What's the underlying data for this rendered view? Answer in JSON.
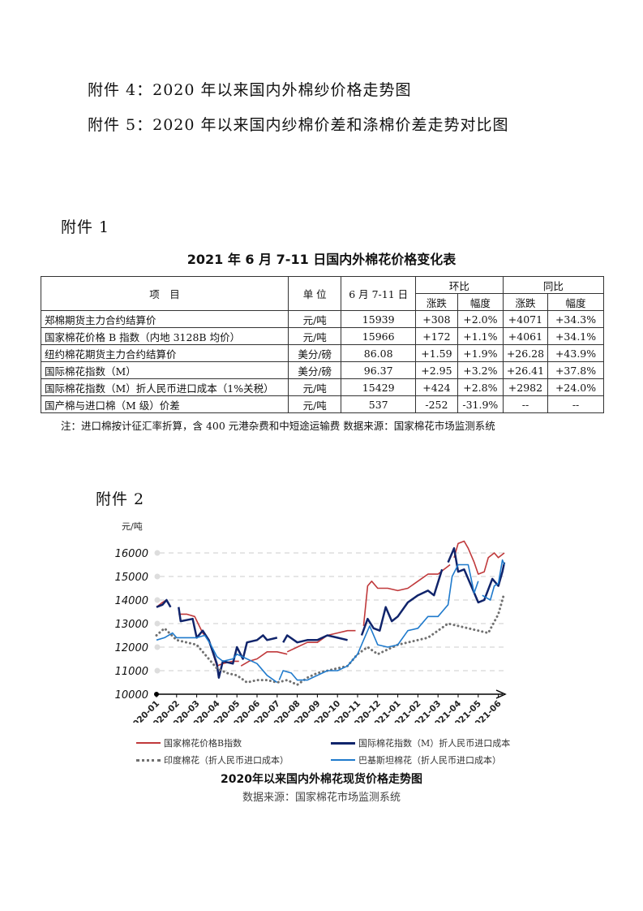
{
  "attachments_top": [
    "附件 4：2020 年以来国内外棉纱价格走势图",
    "附件 5：2020 年以来国内纱棉价差和涤棉价差走势对比图"
  ],
  "attachment1_label": "附件 1",
  "table": {
    "title": "2021 年 6 月 7-11 日国内外棉花价格变化表",
    "headers": {
      "item": "项　目",
      "unit": "单 位",
      "period": "6 月 7-11 日",
      "mom": "环比",
      "yoy": "同比",
      "change": "涨跌",
      "pct": "幅度"
    },
    "rows": [
      [
        "郑棉期货主力合约结算价",
        "元/吨",
        "15939",
        "+308",
        "+2.0%",
        "+4071",
        "+34.3%"
      ],
      [
        "国家棉花价格 B 指数（内地 3128B 均价）",
        "元/吨",
        "15966",
        "+172",
        "+1.1%",
        "+4061",
        "+34.1%"
      ],
      [
        "纽约棉花期货主力合约结算价",
        "美分/磅",
        "86.08",
        "+1.59",
        "+1.9%",
        "+26.28",
        "+43.9%"
      ],
      [
        "国际棉花指数（M）",
        "美分/磅",
        "96.37",
        "+2.95",
        "+3.2%",
        "+26.41",
        "+37.8%"
      ],
      [
        "国际棉花指数（M）折人民币进口成本（1%关税）",
        "元/吨",
        "15429",
        "+424",
        "+2.8%",
        "+2982",
        "+24.0%"
      ],
      [
        "国产棉与进口棉（M 级）价差",
        "元/吨",
        "537",
        "-252",
        "-31.9%",
        "--",
        "--"
      ]
    ],
    "note": "注：进口棉按计征汇率折算，含 400 元港杂费和中短途运输费  数据来源：国家棉花市场监测系统"
  },
  "attachment2_label": "附件 2",
  "chart_data": {
    "type": "line",
    "title": "2020年以来国内外棉花现货价格走势图",
    "source": "数据来源：国家棉花市场监测系统",
    "ylabel": "元/吨",
    "ylim": [
      10000,
      16500
    ],
    "yticks": [
      "10000",
      "11000",
      "12000",
      "13000",
      "14000",
      "15000",
      "16000"
    ],
    "xticks": [
      "2020-01",
      "2020-02",
      "2020-03",
      "2020-04",
      "2020-05",
      "2020-06",
      "2020-07",
      "2020-08",
      "2020-09",
      "2020-10",
      "2020-11",
      "2020-12",
      "2021-01",
      "2021-02",
      "2021-03",
      "2021-04",
      "2021-05",
      "2021-06"
    ],
    "x_unit": "month index from 2020-01",
    "series": [
      {
        "name": "国家棉花价格B指数",
        "color": "#c0393b",
        "style": "solid",
        "points": [
          [
            0,
            13700
          ],
          [
            0.3,
            13900
          ],
          [
            0.5,
            14000
          ],
          null,
          [
            1.1,
            13400
          ],
          [
            1.5,
            13400
          ],
          [
            1.9,
            13300
          ],
          [
            2.3,
            12600
          ],
          [
            2.6,
            12300
          ],
          [
            3,
            11200
          ],
          [
            3.3,
            11300
          ],
          [
            3.8,
            11400
          ],
          [
            4.1,
            11400
          ],
          null,
          [
            4.2,
            11200
          ],
          [
            4.6,
            11400
          ],
          [
            5,
            11500
          ],
          [
            5.5,
            11800
          ],
          [
            6,
            11800
          ],
          [
            6.5,
            11700
          ],
          null,
          [
            6.5,
            11800
          ],
          [
            7,
            12000
          ],
          [
            7.5,
            12200
          ],
          [
            8,
            12200
          ],
          [
            8.5,
            12500
          ],
          [
            9,
            12600
          ],
          [
            9.5,
            12700
          ],
          [
            9.9,
            12700
          ],
          null,
          [
            10.3,
            12900
          ],
          [
            10.5,
            14600
          ],
          [
            10.7,
            14800
          ],
          [
            11,
            14500
          ],
          [
            11.5,
            14500
          ],
          [
            12,
            14400
          ],
          [
            12.5,
            14500
          ],
          [
            13,
            14800
          ],
          [
            13.5,
            15100
          ],
          [
            14,
            15100
          ],
          [
            14.3,
            15300
          ],
          [
            14.6,
            15500
          ],
          null,
          [
            14.8,
            15800
          ],
          [
            15,
            16400
          ],
          [
            15.3,
            16500
          ],
          [
            15.5,
            16200
          ],
          [
            15.8,
            15600
          ],
          [
            16,
            15100
          ],
          [
            16.3,
            15200
          ],
          [
            16.5,
            15800
          ],
          [
            16.8,
            16000
          ],
          [
            17,
            15800
          ],
          [
            17.3,
            16000
          ]
        ]
      },
      {
        "name": "国际棉花指数（M）折人民币进口成本",
        "color": "#10246b",
        "style": "solid",
        "points": [
          [
            0,
            13700
          ],
          [
            0.3,
            13800
          ],
          [
            0.5,
            14000
          ],
          [
            0.7,
            13700
          ],
          null,
          [
            1.1,
            13700
          ],
          [
            1.2,
            13100
          ],
          [
            1.8,
            13200
          ],
          [
            2,
            12400
          ],
          [
            2.3,
            12700
          ],
          [
            2.6,
            12300
          ],
          [
            3,
            11300
          ],
          [
            3.1,
            10700
          ],
          [
            3.3,
            11400
          ],
          [
            3.8,
            11300
          ],
          [
            4,
            12000
          ],
          [
            4.3,
            11500
          ],
          [
            4.5,
            12200
          ],
          [
            5,
            12300
          ],
          [
            5.3,
            12500
          ],
          [
            5.5,
            12300
          ],
          [
            6,
            12400
          ],
          null,
          [
            6.3,
            12200
          ],
          [
            6.5,
            12500
          ],
          [
            7,
            12200
          ],
          [
            7.5,
            12300
          ],
          [
            8,
            12300
          ],
          [
            8.5,
            12500
          ],
          [
            9,
            12400
          ],
          [
            9.5,
            12300
          ],
          null,
          [
            10.2,
            12500
          ],
          [
            10.5,
            13200
          ],
          [
            10.8,
            12800
          ],
          [
            11.1,
            12700
          ],
          [
            11.4,
            13700
          ],
          [
            11.7,
            13100
          ],
          [
            12,
            13300
          ],
          [
            12.5,
            13900
          ],
          [
            13,
            14200
          ],
          [
            13.5,
            14400
          ],
          [
            13.8,
            14200
          ],
          [
            14.2,
            15300
          ],
          null,
          [
            14.5,
            15600
          ],
          [
            14.8,
            16200
          ],
          [
            15,
            15200
          ],
          [
            15.3,
            15300
          ],
          [
            15.7,
            14500
          ],
          [
            16,
            13900
          ],
          [
            16.3,
            14000
          ],
          [
            16.7,
            14900
          ],
          [
            17,
            14600
          ],
          [
            17.2,
            15200
          ],
          [
            17.3,
            15600
          ]
        ]
      },
      {
        "name": "印度棉花（折人民币进口成本）",
        "color": "#707070",
        "style": "dotted",
        "points": [
          [
            0,
            12500
          ],
          [
            0.4,
            12800
          ],
          [
            1,
            12300
          ],
          [
            1.5,
            12200
          ],
          [
            2,
            12100
          ],
          [
            2.5,
            11600
          ],
          [
            3,
            11100
          ],
          [
            3.5,
            10900
          ],
          [
            4,
            10800
          ],
          [
            4.5,
            10500
          ],
          [
            5,
            10600
          ],
          [
            5.5,
            10600
          ],
          [
            6,
            10500
          ],
          [
            6.5,
            10600
          ],
          [
            7,
            10400
          ],
          [
            7.5,
            10700
          ],
          [
            8,
            10900
          ],
          [
            8.5,
            11000
          ],
          [
            9,
            11100
          ],
          [
            9.5,
            11200
          ],
          [
            10,
            11700
          ],
          [
            10.5,
            12000
          ],
          [
            11,
            11700
          ],
          [
            11.5,
            11900
          ],
          [
            12,
            12100
          ],
          [
            12.5,
            12200
          ],
          [
            13,
            12300
          ],
          [
            13.5,
            12400
          ],
          [
            14,
            12700
          ],
          [
            14.5,
            13000
          ],
          [
            15,
            12900
          ],
          [
            15.5,
            12800
          ],
          [
            16,
            12700
          ],
          [
            16.5,
            12600
          ],
          [
            17,
            13400
          ],
          [
            17.3,
            14300
          ]
        ]
      },
      {
        "name": "巴基斯坦棉花（折人民币进口成本）",
        "color": "#1f7acc",
        "style": "solid",
        "points": [
          [
            0,
            12300
          ],
          [
            0.4,
            12400
          ],
          [
            0.8,
            12600
          ],
          [
            1,
            12400
          ],
          [
            1.5,
            12400
          ],
          [
            2,
            12400
          ],
          [
            2.4,
            12500
          ],
          [
            2.7,
            12100
          ],
          [
            3,
            11600
          ],
          [
            3.3,
            11400
          ],
          [
            3.8,
            11500
          ],
          [
            4,
            11700
          ],
          [
            4.5,
            11500
          ],
          [
            5,
            11300
          ],
          [
            5.5,
            10800
          ],
          [
            6,
            10500
          ],
          null,
          [
            6.1,
            10600
          ],
          [
            6.3,
            11000
          ],
          [
            6.7,
            10900
          ],
          [
            7,
            10600
          ],
          [
            7.5,
            10600
          ],
          [
            8,
            10800
          ],
          [
            8.5,
            11000
          ],
          [
            9,
            11000
          ],
          [
            9.5,
            11200
          ],
          [
            10,
            11700
          ],
          [
            10.3,
            12300
          ],
          [
            10.6,
            12900
          ],
          [
            11,
            12100
          ],
          [
            11.5,
            12000
          ],
          [
            12,
            12100
          ],
          [
            12.5,
            12700
          ],
          [
            13,
            12800
          ],
          [
            13.5,
            13300
          ],
          [
            14,
            13300
          ],
          [
            14.3,
            13600
          ],
          [
            14.5,
            13800
          ],
          [
            14.7,
            15000
          ],
          [
            15,
            15500
          ],
          [
            15.5,
            15500
          ],
          [
            15.8,
            14300
          ],
          [
            16,
            14800
          ],
          null,
          [
            16.2,
            14200
          ],
          [
            16.6,
            14000
          ],
          [
            16.8,
            14600
          ],
          [
            17,
            14700
          ],
          [
            17.2,
            15700
          ],
          [
            17.3,
            15500
          ]
        ]
      }
    ]
  }
}
